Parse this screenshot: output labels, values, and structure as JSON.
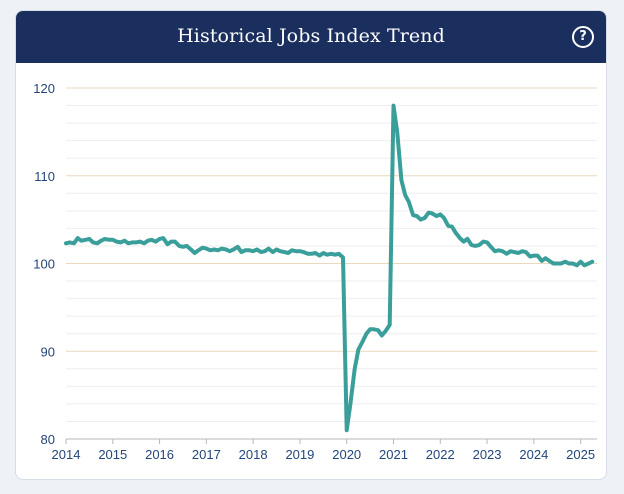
{
  "header": {
    "title": "Historical Jobs Index Trend",
    "help_icon": "question-circle-icon",
    "help_symbol": "?"
  },
  "colors": {
    "header_bg": "#1b2f5e",
    "line": "#3a9e9a",
    "major_grid": "#ead9bd",
    "minor_grid": "#eeeeee",
    "tick_text": "#24467a"
  },
  "chart_data": {
    "type": "line",
    "title": "",
    "xlabel": "",
    "ylabel": "",
    "ylim": [
      80,
      120
    ],
    "yticks": [
      80,
      90,
      100,
      110,
      120
    ],
    "xlim": [
      2014.0,
      2025.35
    ],
    "xticks": [
      2014,
      2015,
      2016,
      2017,
      2018,
      2019,
      2020,
      2021,
      2022,
      2023,
      2024,
      2025
    ],
    "grid": true,
    "legend": "none",
    "series": [
      {
        "x": [
          2014.0,
          2014.08,
          2014.17,
          2014.25,
          2014.33,
          2014.42,
          2014.5,
          2014.58,
          2014.67,
          2014.75,
          2014.83,
          2014.92,
          2015.0,
          2015.08,
          2015.17,
          2015.25,
          2015.33,
          2015.42,
          2015.5,
          2015.58,
          2015.67,
          2015.75,
          2015.83,
          2015.92,
          2016.0,
          2016.08,
          2016.17,
          2016.25,
          2016.33,
          2016.42,
          2016.5,
          2016.58,
          2016.67,
          2016.75,
          2016.83,
          2016.92,
          2017.0,
          2017.08,
          2017.17,
          2017.25,
          2017.33,
          2017.42,
          2017.5,
          2017.58,
          2017.67,
          2017.75,
          2017.83,
          2017.92,
          2018.0,
          2018.08,
          2018.17,
          2018.25,
          2018.33,
          2018.42,
          2018.5,
          2018.58,
          2018.67,
          2018.75,
          2018.83,
          2018.92,
          2019.0,
          2019.08,
          2019.17,
          2019.25,
          2019.33,
          2019.42,
          2019.5,
          2019.58,
          2019.67,
          2019.75,
          2019.83,
          2019.92,
          2020.0,
          2020.08,
          2020.17,
          2020.25,
          2020.33,
          2020.42,
          2020.5,
          2020.58,
          2020.67,
          2020.75,
          2020.83,
          2020.92,
          2021.0,
          2021.08,
          2021.17,
          2021.25,
          2021.33,
          2021.42,
          2021.5,
          2021.58,
          2021.67,
          2021.75,
          2021.83,
          2021.92,
          2022.0,
          2022.08,
          2022.17,
          2022.25,
          2022.33,
          2022.42,
          2022.5,
          2022.58,
          2022.67,
          2022.75,
          2022.83,
          2022.92,
          2023.0,
          2023.08,
          2023.17,
          2023.25,
          2023.33,
          2023.42,
          2023.5,
          2023.58,
          2023.67,
          2023.75,
          2023.83,
          2023.92,
          2024.0,
          2024.08,
          2024.17,
          2024.25,
          2024.33,
          2024.42,
          2024.5,
          2024.58,
          2024.67,
          2024.75,
          2024.83,
          2024.92,
          2025.0,
          2025.08,
          2025.17,
          2025.25
        ],
        "values": [
          102.3,
          102.4,
          102.3,
          102.9,
          102.6,
          102.7,
          102.8,
          102.4,
          102.3,
          102.6,
          102.8,
          102.7,
          102.7,
          102.5,
          102.4,
          102.6,
          102.3,
          102.4,
          102.4,
          102.5,
          102.3,
          102.6,
          102.7,
          102.5,
          102.8,
          102.9,
          102.2,
          102.5,
          102.5,
          102.0,
          101.9,
          102.0,
          101.6,
          101.2,
          101.5,
          101.8,
          101.7,
          101.5,
          101.6,
          101.5,
          101.7,
          101.6,
          101.4,
          101.6,
          101.9,
          101.3,
          101.5,
          101.5,
          101.4,
          101.6,
          101.3,
          101.4,
          101.7,
          101.3,
          101.6,
          101.4,
          101.3,
          101.2,
          101.5,
          101.4,
          101.4,
          101.3,
          101.1,
          101.1,
          101.2,
          100.9,
          101.2,
          101.0,
          101.1,
          101.0,
          101.1,
          100.7,
          81.0,
          84.0,
          88.0,
          90.2,
          91.0,
          92.0,
          92.5,
          92.5,
          92.4,
          91.8,
          92.3,
          93.0,
          118.0,
          115.0,
          109.5,
          107.8,
          107.0,
          105.5,
          105.4,
          105.0,
          105.2,
          105.8,
          105.7,
          105.4,
          105.6,
          105.2,
          104.3,
          104.2,
          103.5,
          102.9,
          102.5,
          102.8,
          102.1,
          102.0,
          102.1,
          102.5,
          102.4,
          101.9,
          101.4,
          101.5,
          101.4,
          101.1,
          101.4,
          101.3,
          101.2,
          101.4,
          101.3,
          100.8,
          100.9,
          100.9,
          100.3,
          100.6,
          100.3,
          100.0,
          100.0,
          100.0,
          100.2,
          100.0,
          100.0,
          99.8,
          100.2,
          99.8,
          100.0,
          100.2
        ]
      }
    ]
  }
}
